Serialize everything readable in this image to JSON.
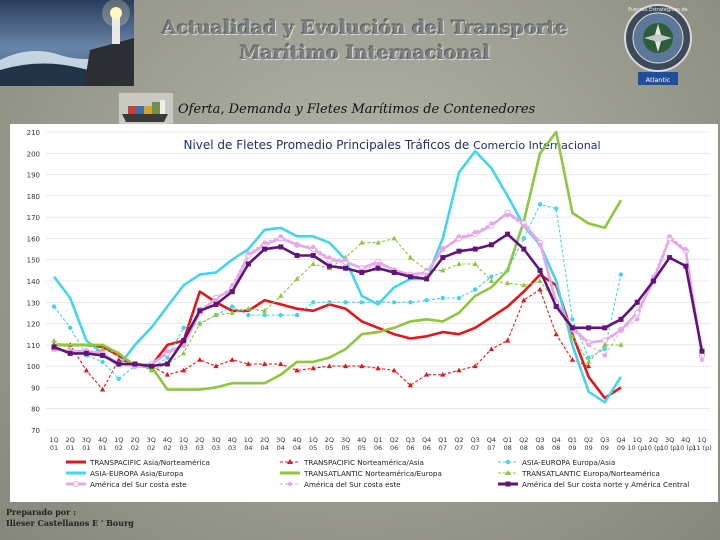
{
  "header": {
    "title_line1": "Actualidad y Evolución del Transporte",
    "title_line2": "Marítimo Internacional",
    "subtitle": "Oferta, Demanda y Fletes Marítimos de  Contenedores"
  },
  "logo": {
    "top_text": "Fuerzas Estratégicas de",
    "bottom_text": "Atlantic"
  },
  "footer": {
    "prepared_label": "Preparado por :",
    "author": "Ilieser Castellanos E ' Bourg"
  },
  "colors": {
    "red": "#e3161c",
    "lightblue": "#46d4ec",
    "green": "#8dc63f",
    "purple": "#62137a",
    "pink": "#e6a8e8",
    "darkred": "#c9202b"
  },
  "chart_data": {
    "type": "line",
    "title_part1": "Nivel de Fletes Promedio  Principales Tráficos de ",
    "title_part2": "Comercio Internacional",
    "ylim": [
      70,
      210
    ],
    "yticks": [
      70,
      80,
      90,
      100,
      110,
      120,
      130,
      140,
      150,
      160,
      170,
      180,
      190,
      200,
      210
    ],
    "categories": [
      "1Q 01",
      "2Q 01",
      "3Q 01",
      "4Q 01",
      "1Q 02",
      "2Q 02",
      "3Q 02",
      "4Q 02",
      "1Q 03",
      "2Q 03",
      "3Q 03",
      "4Q 03",
      "1Q 04",
      "2Q 04",
      "3Q 04",
      "4Q 04",
      "1Q 05",
      "2Q 05",
      "3Q 05",
      "4Q 05",
      "Q1 06",
      "Q2 06",
      "Q3 06",
      "Q4 06",
      "Q1 07",
      "Q2 07",
      "Q3 07",
      "Q4 07",
      "Q1 08",
      "Q2 08",
      "Q3 08",
      "Q4 08",
      "Q1 09",
      "Q2 09",
      "Q3 09",
      "Q4 09",
      "1Q 10 (p)",
      "2Q 10 (p)",
      "3Q 10 (p)",
      "4Q 10 (p)",
      "1Q 11 (p)"
    ],
    "series": [
      {
        "name": "TRANSPACIFIC Asia/Norteamérica",
        "color": "#e3161c",
        "style": "solid-thick",
        "values": [
          110,
          110,
          110,
          109,
          105,
          100,
          100,
          110,
          112,
          135,
          130,
          126,
          126,
          131,
          129,
          127,
          126,
          129,
          127,
          121,
          118,
          115,
          113,
          114,
          116,
          115,
          118,
          123,
          128,
          135,
          143,
          138,
          115,
          95,
          85,
          90,
          null,
          null,
          null,
          null,
          null
        ]
      },
      {
        "name": "TRANSPACIFIC Norteamérica/Asia",
        "color": "#e3161c",
        "style": "dash-triangle",
        "values": [
          110,
          110,
          98,
          89,
          103,
          101,
          100,
          96,
          98,
          103,
          100,
          103,
          101,
          101,
          101,
          98,
          99,
          100,
          100,
          100,
          99,
          98,
          91,
          96,
          96,
          98,
          100,
          108,
          112,
          131,
          136,
          115,
          103,
          100,
          null,
          null,
          null,
          null,
          null,
          null,
          null
        ]
      },
      {
        "name": "ASIA-EUROPA Europa/Asia",
        "color": "#46d4ec",
        "style": "dash-circle",
        "values": [
          128,
          118,
          105,
          102,
          94,
          100,
          99,
          104,
          118,
          120,
          124,
          128,
          124,
          124,
          124,
          124,
          130,
          130,
          130,
          130,
          130,
          130,
          130,
          131,
          132,
          132,
          136,
          142,
          145,
          160,
          176,
          174,
          122,
          104,
          108,
          143,
          null,
          null,
          null,
          null,
          null
        ]
      },
      {
        "name": "ASIA-EUROPA Asia/Europa",
        "color": "#46d4ec",
        "style": "solid-thick",
        "values": [
          142,
          132,
          112,
          106,
          100,
          110,
          118,
          128,
          138,
          143,
          144,
          150,
          155,
          164,
          165,
          161,
          161,
          158,
          150,
          133,
          129,
          137,
          141,
          141,
          160,
          191,
          201,
          193,
          180,
          166,
          157,
          140,
          110,
          88,
          83,
          95,
          null,
          null,
          null,
          null,
          null
        ]
      },
      {
        "name": "TRANSATLANTIC  Norteamérica/Europa",
        "color": "#8dc63f",
        "style": "solid-thick",
        "values": [
          110,
          110,
          110,
          110,
          106,
          100,
          100,
          89,
          89,
          89,
          90,
          92,
          92,
          92,
          96,
          102,
          102,
          104,
          108,
          115,
          116,
          118,
          121,
          122,
          121,
          125,
          133,
          137,
          145,
          168,
          200,
          210,
          172,
          167,
          165,
          178,
          null,
          null,
          null,
          null,
          null
        ]
      },
      {
        "name": "TRANSATLANTIC  Europa/Norteamérica",
        "color": "#8dc63f",
        "style": "dash-triangle",
        "values": [
          112,
          108,
          106,
          108,
          106,
          101,
          98,
          101,
          106,
          120,
          124,
          125,
          127,
          126,
          133,
          141,
          148,
          146,
          151,
          158,
          158,
          160,
          151,
          145,
          145,
          148,
          148,
          140,
          139,
          138,
          140,
          130,
          114,
          102,
          110,
          110,
          null,
          null,
          null,
          null,
          null
        ]
      },
      {
        "name": "América del Sur costa este",
        "color": "#e6a8e8",
        "style": "solid-thick",
        "values": [
          108,
          107,
          107,
          106,
          101,
          100,
          101,
          106,
          110,
          125,
          132,
          136,
          152,
          157,
          160,
          157,
          155,
          150,
          149,
          146,
          149,
          145,
          143,
          144,
          155,
          160,
          162,
          166,
          172,
          167,
          158,
          130,
          118,
          111,
          112,
          117,
          125,
          140,
          160,
          154,
          105
        ]
      },
      {
        "name": "América del Sur costa este ",
        "color": "#e6a8e8",
        "style": "dash-circle",
        "values": [
          108,
          107,
          107,
          106,
          101,
          100,
          100,
          107,
          110,
          127,
          131,
          138,
          153,
          158,
          161,
          157,
          156,
          151,
          150,
          145,
          148,
          145,
          142,
          143,
          155,
          161,
          163,
          167,
          171,
          166,
          157,
          128,
          117,
          110,
          105,
          117,
          122,
          142,
          161,
          155,
          103
        ]
      },
      {
        "name": "América del Sur costa norte y América Central",
        "color": "#62137a",
        "style": "solid-thick",
        "values": [
          109,
          106,
          106,
          105,
          101,
          101,
          100,
          101,
          112,
          126,
          129,
          135,
          148,
          155,
          156,
          152,
          152,
          147,
          146,
          144,
          146,
          144,
          142,
          141,
          151,
          154,
          155,
          157,
          162,
          155,
          145,
          128,
          118,
          118,
          118,
          122,
          130,
          140,
          151,
          147,
          107
        ]
      }
    ],
    "legend_rows": [
      [
        0,
        1,
        2
      ],
      [
        3,
        4,
        5
      ],
      [
        6,
        7,
        8
      ]
    ]
  }
}
